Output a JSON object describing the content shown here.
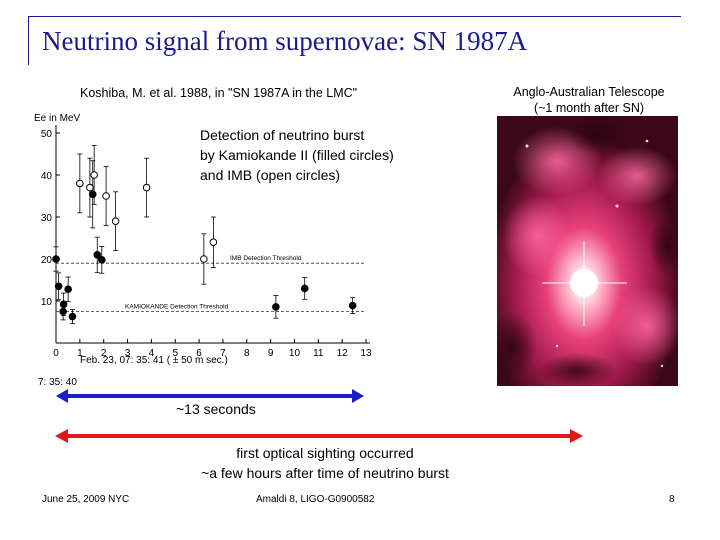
{
  "title": "Neutrino signal from supernovae: SN 1987A",
  "reference": "Koshiba, M. et al. 1988, in \"SN 1987A in the LMC\"",
  "telescope_caption": [
    "Anglo-Australian Telescope",
    "(~1 month after SN)"
  ],
  "detection_caption": [
    "Detection of neutrino burst",
    "by Kamiokande II (filled circles)",
    "and IMB (open circles)"
  ],
  "seconds_label": "~13 seconds",
  "optical_caption": [
    "first optical sighting occurred",
    "~a few hours after time of neutrino burst"
  ],
  "footer": {
    "date": "June 25, 2009  NYC",
    "middle": "Amaldi 8,  LIGO-G0900582",
    "page": "8"
  },
  "colors": {
    "title": "#1a1a8c",
    "blue_arrow": "#1c1ccc",
    "red_arrow": "#e01818"
  },
  "chart_data": {
    "type": "scatter",
    "ylabel": "Ee  in  MeV",
    "xlabel": [
      "Feb. 23, 07: 35: 41  ( ± 50 m sec.)",
      "7: 35: 40"
    ],
    "xlim": [
      0,
      13
    ],
    "ylim": [
      0,
      50
    ],
    "x_ticks": [
      "0",
      "1",
      "2",
      "3",
      "4",
      "5",
      "6",
      "7",
      "8",
      "9",
      "10",
      "11",
      "12",
      "13"
    ],
    "y_ticks": [
      "10",
      "20",
      "30",
      "40",
      "50"
    ],
    "thresholds": [
      {
        "label": "IMB  Detection  Threshold",
        "y": 19
      },
      {
        "label": "KAMIOKANDE   Detection   Threshold",
        "y": 7.5
      }
    ],
    "series": [
      {
        "name": "Kamiokande II",
        "style": "filled",
        "points": [
          {
            "x": 0.0,
            "y": 20.0,
            "err": 2.9
          },
          {
            "x": 0.11,
            "y": 13.5,
            "err": 3.2
          },
          {
            "x": 0.3,
            "y": 7.5,
            "err": 2.0
          },
          {
            "x": 0.32,
            "y": 9.2,
            "err": 2.7
          },
          {
            "x": 0.51,
            "y": 12.8,
            "err": 2.9
          },
          {
            "x": 0.69,
            "y": 6.3,
            "err": 1.7
          },
          {
            "x": 1.54,
            "y": 35.4,
            "err": 8.0
          },
          {
            "x": 1.73,
            "y": 21.0,
            "err": 4.2
          },
          {
            "x": 1.92,
            "y": 19.8,
            "err": 3.2
          },
          {
            "x": 9.22,
            "y": 8.6,
            "err": 2.7
          },
          {
            "x": 10.43,
            "y": 13.0,
            "err": 2.6
          },
          {
            "x": 12.44,
            "y": 8.9,
            "err": 1.9
          }
        ]
      },
      {
        "name": "IMB",
        "style": "open",
        "points": [
          {
            "x": 1.0,
            "y": 38.0,
            "err": 7.0
          },
          {
            "x": 1.42,
            "y": 37.0,
            "err": 7.0
          },
          {
            "x": 1.6,
            "y": 40.0,
            "err": 7.0
          },
          {
            "x": 2.1,
            "y": 35.0,
            "err": 7.0
          },
          {
            "x": 2.5,
            "y": 29.0,
            "err": 7.0
          },
          {
            "x": 3.8,
            "y": 37.0,
            "err": 7.0
          },
          {
            "x": 6.2,
            "y": 20.0,
            "err": 6.0
          },
          {
            "x": 6.6,
            "y": 24.0,
            "err": 6.0
          }
        ]
      }
    ],
    "grid": false,
    "legend": "none"
  }
}
